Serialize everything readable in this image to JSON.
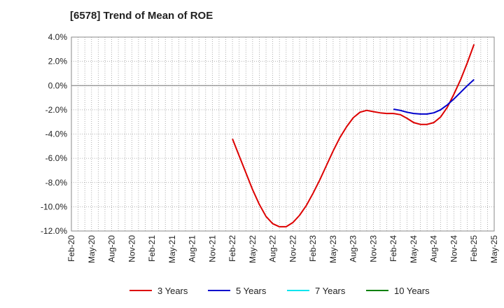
{
  "title": "[6578]  Trend of Mean of ROE",
  "chart_data": {
    "type": "line",
    "title": "[6578]  Trend of Mean of ROE",
    "xlabel": "",
    "ylabel": "",
    "ylim": [
      -12,
      4
    ],
    "y_ticks": [
      "4.0%",
      "2.0%",
      "0.0%",
      "-2.0%",
      "-4.0%",
      "-6.0%",
      "-8.0%",
      "-10.0%",
      "-12.0%"
    ],
    "x_ticks": [
      "Feb-20",
      "May-20",
      "Aug-20",
      "Nov-20",
      "Feb-21",
      "May-21",
      "Aug-21",
      "Nov-21",
      "Feb-22",
      "May-22",
      "Aug-22",
      "Nov-22",
      "Feb-23",
      "May-23",
      "Aug-23",
      "Nov-23",
      "Feb-24",
      "May-24",
      "Aug-24",
      "Nov-24",
      "Feb-25",
      "May-25"
    ],
    "grid": true,
    "legend_position": "bottom",
    "series": [
      {
        "name": "3 Years",
        "color": "#dd0000",
        "points": [
          [
            "Feb-22",
            -4.4
          ],
          [
            "Mar-22",
            -5.8
          ],
          [
            "Apr-22",
            -7.2
          ],
          [
            "May-22",
            -8.6
          ],
          [
            "Jun-22",
            -9.8
          ],
          [
            "Jul-22",
            -10.8
          ],
          [
            "Aug-22",
            -11.4
          ],
          [
            "Sep-22",
            -11.65
          ],
          [
            "Oct-22",
            -11.65
          ],
          [
            "Nov-22",
            -11.3
          ],
          [
            "Dec-22",
            -10.7
          ],
          [
            "Jan-23",
            -9.9
          ],
          [
            "Feb-23",
            -8.9
          ],
          [
            "Mar-23",
            -7.8
          ],
          [
            "Apr-23",
            -6.6
          ],
          [
            "May-23",
            -5.4
          ],
          [
            "Jun-23",
            -4.3
          ],
          [
            "Jul-23",
            -3.4
          ],
          [
            "Aug-23",
            -2.65
          ],
          [
            "Sep-23",
            -2.2
          ],
          [
            "Oct-23",
            -2.05
          ],
          [
            "Nov-23",
            -2.15
          ],
          [
            "Dec-23",
            -2.25
          ],
          [
            "Jan-24",
            -2.3
          ],
          [
            "Feb-24",
            -2.3
          ],
          [
            "Mar-24",
            -2.4
          ],
          [
            "Apr-24",
            -2.7
          ],
          [
            "May-24",
            -3.05
          ],
          [
            "Jun-24",
            -3.2
          ],
          [
            "Jul-24",
            -3.2
          ],
          [
            "Aug-24",
            -3.05
          ],
          [
            "Sep-24",
            -2.6
          ],
          [
            "Oct-24",
            -1.8
          ],
          [
            "Nov-24",
            -0.7
          ],
          [
            "Dec-24",
            0.5
          ],
          [
            "Jan-25",
            1.9
          ],
          [
            "Feb-25",
            3.4
          ]
        ]
      },
      {
        "name": "5 Years",
        "color": "#0000cc",
        "points": [
          [
            "Feb-24",
            -1.95
          ],
          [
            "Mar-24",
            -2.05
          ],
          [
            "Apr-24",
            -2.2
          ],
          [
            "May-24",
            -2.3
          ],
          [
            "Jun-24",
            -2.35
          ],
          [
            "Jul-24",
            -2.35
          ],
          [
            "Aug-24",
            -2.25
          ],
          [
            "Sep-24",
            -2.0
          ],
          [
            "Oct-24",
            -1.6
          ],
          [
            "Nov-24",
            -1.1
          ],
          [
            "Dec-24",
            -0.55
          ],
          [
            "Jan-25",
            0.0
          ],
          [
            "Feb-25",
            0.5
          ]
        ]
      },
      {
        "name": "7 Years",
        "color": "#00e5ee",
        "points": []
      },
      {
        "name": "10 Years",
        "color": "#008000",
        "points": []
      }
    ]
  }
}
